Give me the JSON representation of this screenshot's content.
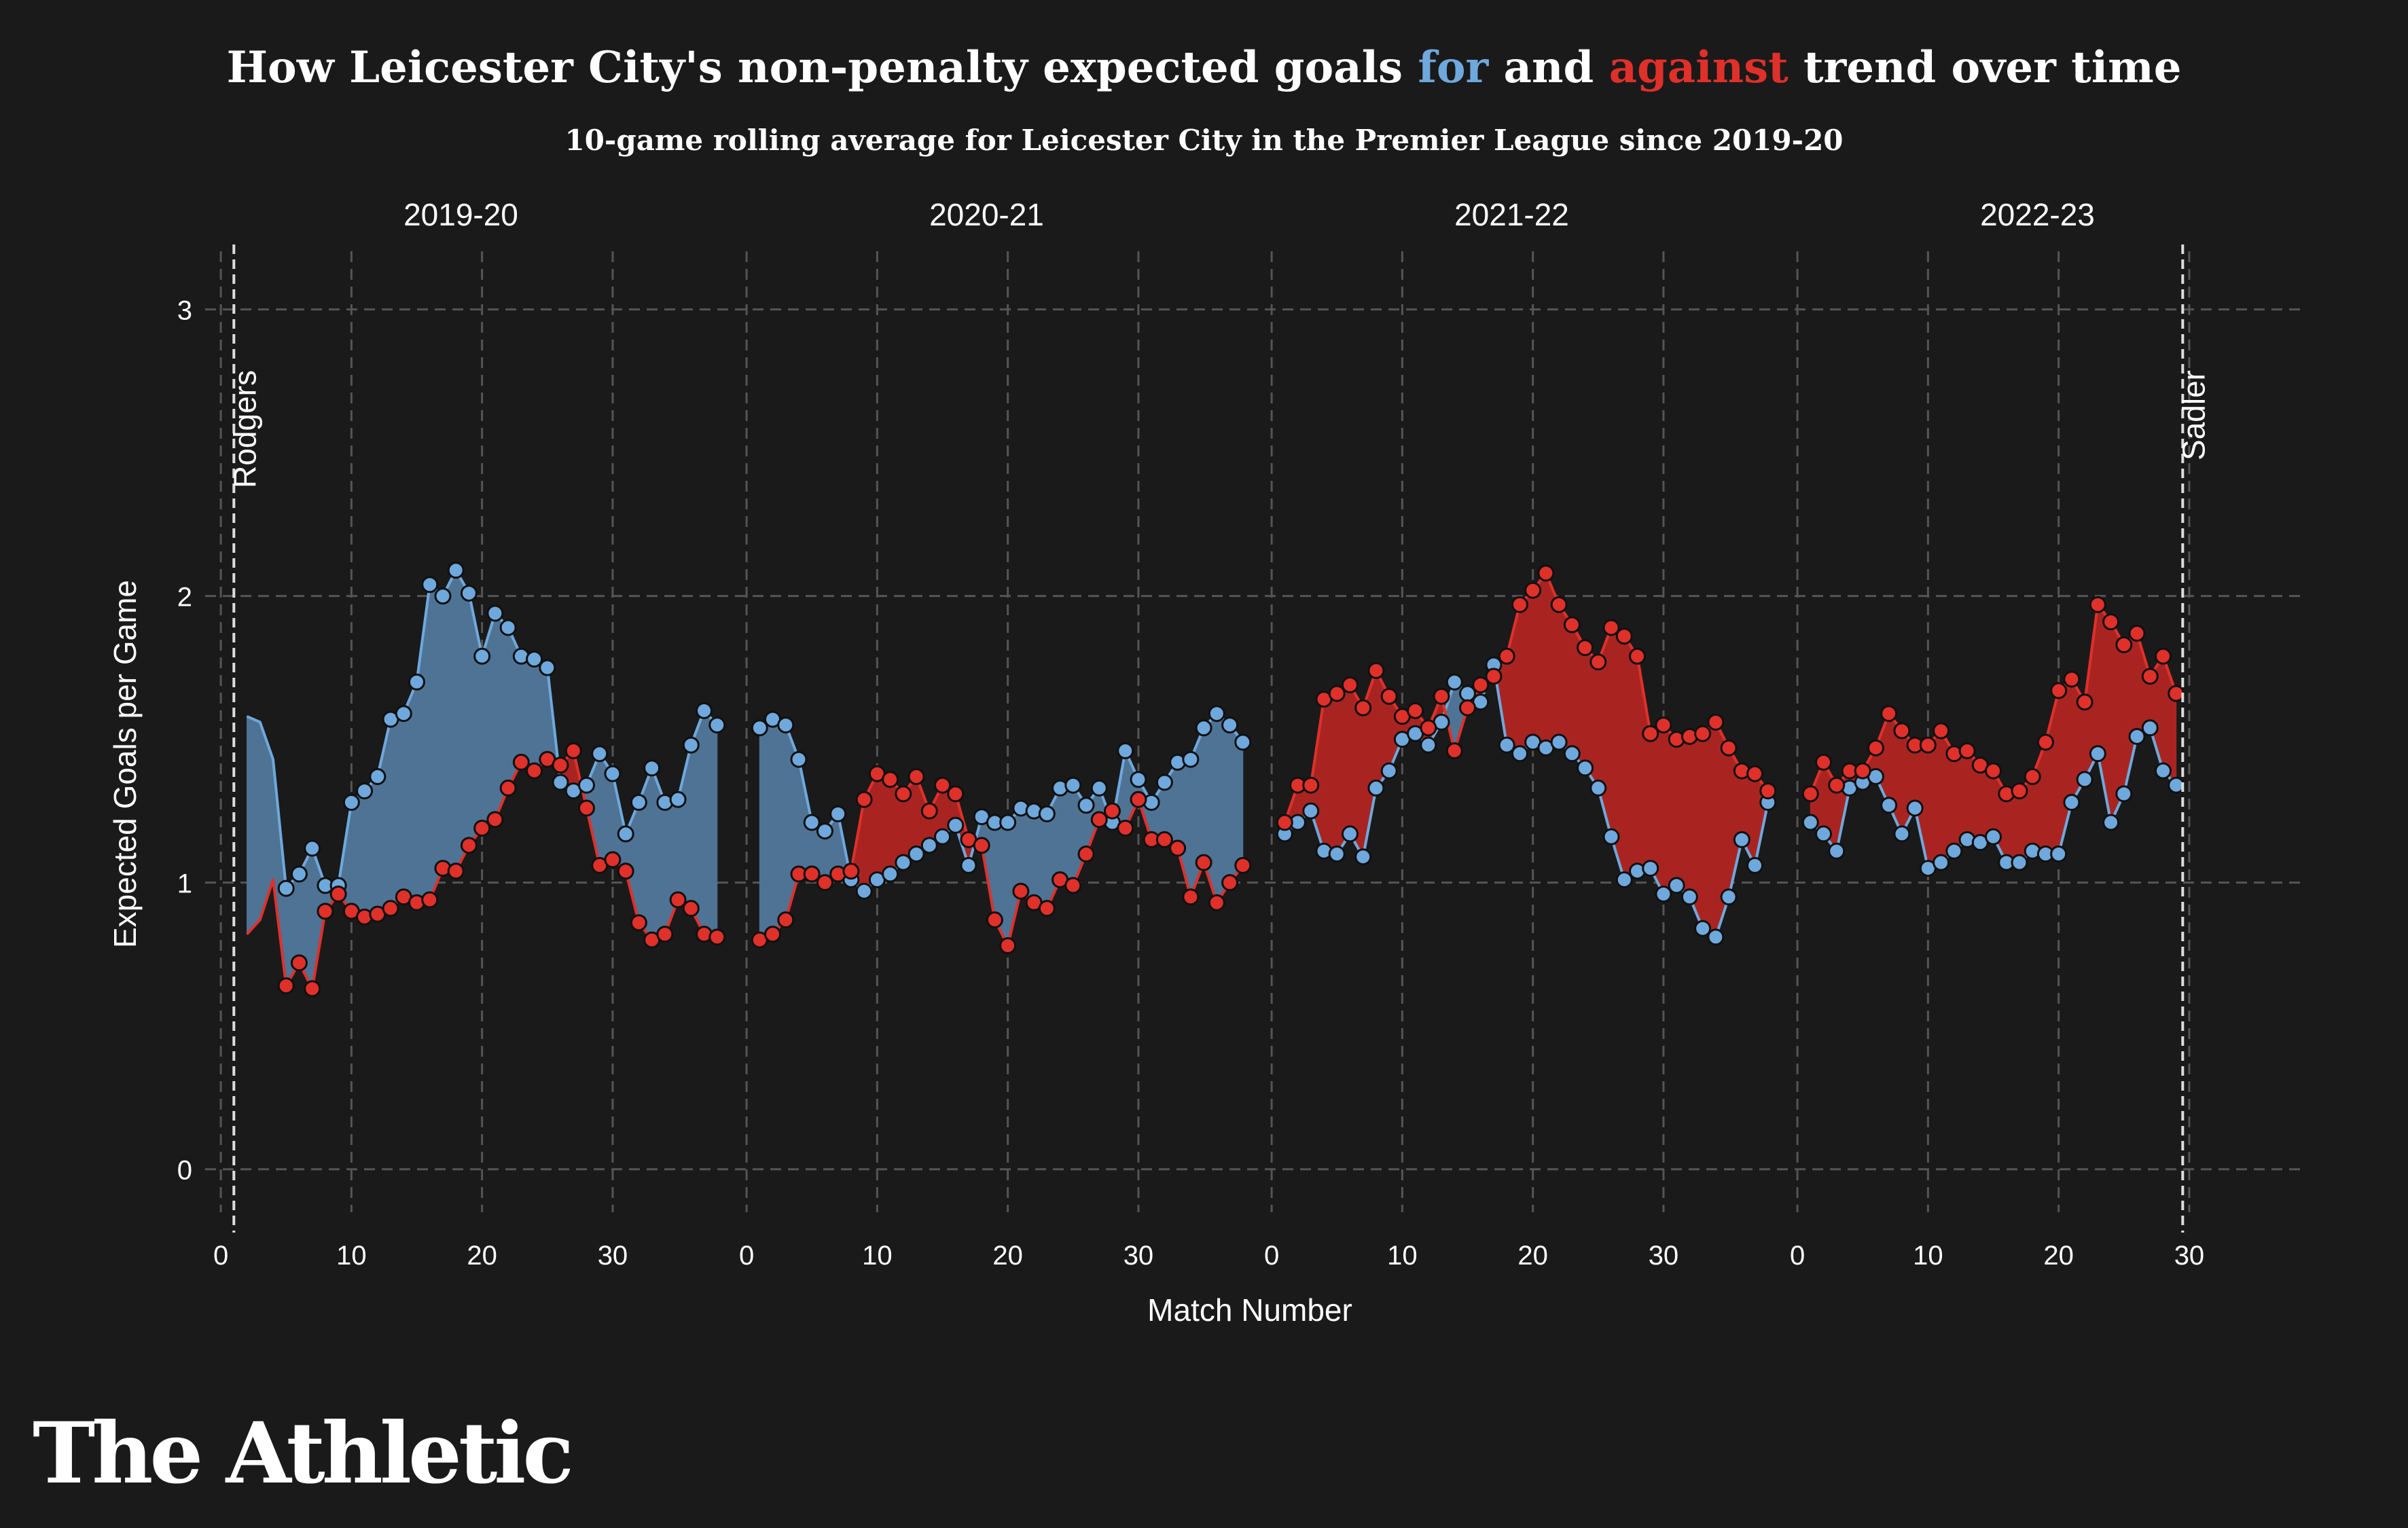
{
  "page": {
    "title_parts": [
      "How Leicester City's non-penalty expected goals ",
      "for",
      " and ",
      "against",
      " trend over time"
    ],
    "subtitle": "10-game rolling average for Leicester City in the Premier League since 2019-20",
    "logo": "The Athletic"
  },
  "colors": {
    "background": "#1a1a1a",
    "for": "#6fa8dc",
    "against": "#e0302a",
    "fill_for": "#4e7395",
    "fill_against": "#a92421",
    "grid": "#555555",
    "text": "#ffffff",
    "point_edge": "#111111"
  },
  "chart_data": {
    "type": "line",
    "title": "How Leicester City's non-penalty expected goals for and against trend over time",
    "subtitle": "10-game rolling average for Leicester City in the Premier League since 2019-20",
    "xlabel": "Match Number",
    "ylabel": "Expected Goals per Game",
    "ylim": [
      -0.15,
      3.12
    ],
    "yticks": [
      0,
      1,
      2,
      3
    ],
    "grid": true,
    "panels": [
      {
        "season": "2019-20",
        "xlim": [
          -1.2,
          39
        ],
        "xticks": [
          0,
          10,
          20,
          30
        ],
        "manager_lines": [
          {
            "x": 1,
            "label": "Rodgers"
          }
        ],
        "area_start_x": 2,
        "area_start_for": [
          1.58,
          1.56,
          1.43
        ],
        "area_start_against": [
          0.82,
          0.87,
          1.01
        ],
        "points_start_x": 5,
        "xg_for": [
          0.98,
          1.03,
          1.12,
          0.99,
          0.99,
          1.28,
          1.32,
          1.37,
          1.57,
          1.59,
          1.7,
          2.04,
          2.0,
          2.09,
          2.01,
          1.79,
          1.94,
          1.89,
          1.79,
          1.78,
          1.75,
          1.35,
          1.32,
          1.34,
          1.45,
          1.38,
          1.17,
          1.28,
          1.4,
          1.28,
          1.29,
          1.48,
          1.6,
          1.55
        ],
        "xg_against": [
          0.64,
          0.72,
          0.63,
          0.9,
          0.96,
          0.9,
          0.88,
          0.89,
          0.91,
          0.95,
          0.93,
          0.94,
          1.05,
          1.04,
          1.13,
          1.19,
          1.22,
          1.33,
          1.42,
          1.39,
          1.43,
          1.41,
          1.46,
          1.26,
          1.06,
          1.08,
          1.04,
          0.86,
          0.8,
          0.82,
          0.94,
          0.91,
          0.82,
          0.81
        ]
      },
      {
        "season": "2020-21",
        "xlim": [
          -1.2,
          39
        ],
        "xticks": [
          0,
          10,
          20,
          30
        ],
        "manager_lines": [],
        "points_start_x": 1,
        "xg_for": [
          1.54,
          1.57,
          1.55,
          1.43,
          1.21,
          1.18,
          1.24,
          1.01,
          0.97,
          1.01,
          1.03,
          1.07,
          1.1,
          1.13,
          1.16,
          1.2,
          1.06,
          1.23,
          1.21,
          1.21,
          1.26,
          1.25,
          1.24,
          1.33,
          1.34,
          1.27,
          1.33,
          1.21,
          1.46,
          1.36,
          1.28,
          1.35,
          1.42,
          1.43,
          1.54,
          1.59,
          1.55,
          1.49
        ],
        "xg_against": [
          0.8,
          0.82,
          0.87,
          1.03,
          1.03,
          1.0,
          1.03,
          1.04,
          1.29,
          1.38,
          1.36,
          1.31,
          1.37,
          1.25,
          1.34,
          1.31,
          1.15,
          1.13,
          0.87,
          0.78,
          0.97,
          0.93,
          0.91,
          1.01,
          0.99,
          1.1,
          1.22,
          1.25,
          1.19,
          1.29,
          1.15,
          1.15,
          1.12,
          0.95,
          1.07,
          0.93,
          1.0,
          1.06
        ]
      },
      {
        "season": "2021-22",
        "xlim": [
          -1.2,
          39
        ],
        "xticks": [
          0,
          10,
          20,
          30
        ],
        "manager_lines": [],
        "points_start_x": 1,
        "xg_for": [
          1.17,
          1.21,
          1.25,
          1.11,
          1.1,
          1.17,
          1.09,
          1.33,
          1.39,
          1.5,
          1.52,
          1.48,
          1.56,
          1.7,
          1.66,
          1.63,
          1.76,
          1.48,
          1.45,
          1.49,
          1.47,
          1.49,
          1.45,
          1.4,
          1.33,
          1.16,
          1.01,
          1.04,
          1.05,
          0.96,
          0.99,
          0.95,
          0.84,
          0.81,
          0.95,
          1.15,
          1.06,
          1.28
        ],
        "xg_against": [
          1.21,
          1.34,
          1.34,
          1.64,
          1.66,
          1.69,
          1.61,
          1.74,
          1.65,
          1.58,
          1.6,
          1.54,
          1.65,
          1.46,
          1.61,
          1.69,
          1.72,
          1.79,
          1.97,
          2.02,
          2.08,
          1.97,
          1.9,
          1.82,
          1.77,
          1.89,
          1.86,
          1.79,
          1.52,
          1.55,
          1.5,
          1.51,
          1.52,
          1.56,
          1.47,
          1.39,
          1.38,
          1.32
        ]
      },
      {
        "season": "2022-23",
        "xlim": [
          -1.2,
          39
        ],
        "xticks": [
          0,
          10,
          20,
          30
        ],
        "manager_lines": [
          {
            "x": 29.5,
            "label": "Sadler"
          }
        ],
        "points_start_x": 1,
        "xg_for": [
          1.21,
          1.17,
          1.11,
          1.33,
          1.35,
          1.37,
          1.27,
          1.17,
          1.26,
          1.05,
          1.07,
          1.11,
          1.15,
          1.14,
          1.16,
          1.07,
          1.07,
          1.11,
          1.1,
          1.1,
          1.28,
          1.36,
          1.45,
          1.21,
          1.31,
          1.51,
          1.54,
          1.39,
          1.34
        ],
        "xg_against": [
          1.31,
          1.42,
          1.34,
          1.39,
          1.39,
          1.47,
          1.59,
          1.53,
          1.48,
          1.48,
          1.53,
          1.45,
          1.46,
          1.41,
          1.39,
          1.31,
          1.32,
          1.37,
          1.49,
          1.67,
          1.71,
          1.63,
          1.97,
          1.91,
          1.83,
          1.87,
          1.72,
          1.79,
          1.66
        ]
      }
    ]
  }
}
